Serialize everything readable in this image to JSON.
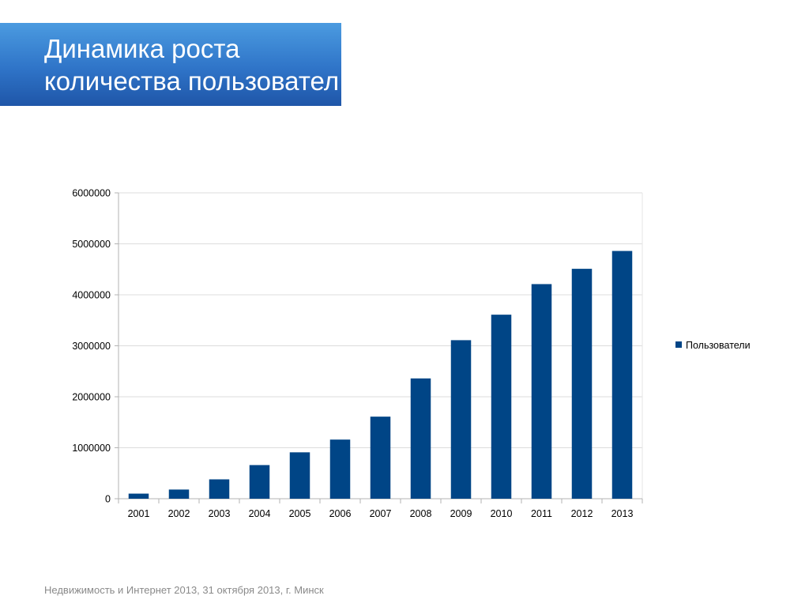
{
  "slide": {
    "title_line1": "Динамика роста",
    "title_line2": "количества пользовател",
    "footer": "Недвижимость и Интернет 2013, 31 октября 2013, г. Минск"
  },
  "chart_data": {
    "type": "bar",
    "title": "",
    "xlabel": "",
    "ylabel": "",
    "categories": [
      "2001",
      "2002",
      "2003",
      "2004",
      "2005",
      "2006",
      "2007",
      "2008",
      "2009",
      "2010",
      "2011",
      "2012",
      "2013"
    ],
    "series": [
      {
        "name": "Пользователи",
        "color": "#004586",
        "values": [
          100000,
          180000,
          380000,
          660000,
          910000,
          1160000,
          1610000,
          2360000,
          3110000,
          3610000,
          4210000,
          4510000,
          4860000
        ]
      }
    ],
    "ylim": [
      0,
      6000000
    ],
    "yticks": [
      "0",
      "1000000",
      "2000000",
      "3000000",
      "4000000",
      "5000000",
      "6000000"
    ],
    "grid": true,
    "legend": "right"
  }
}
